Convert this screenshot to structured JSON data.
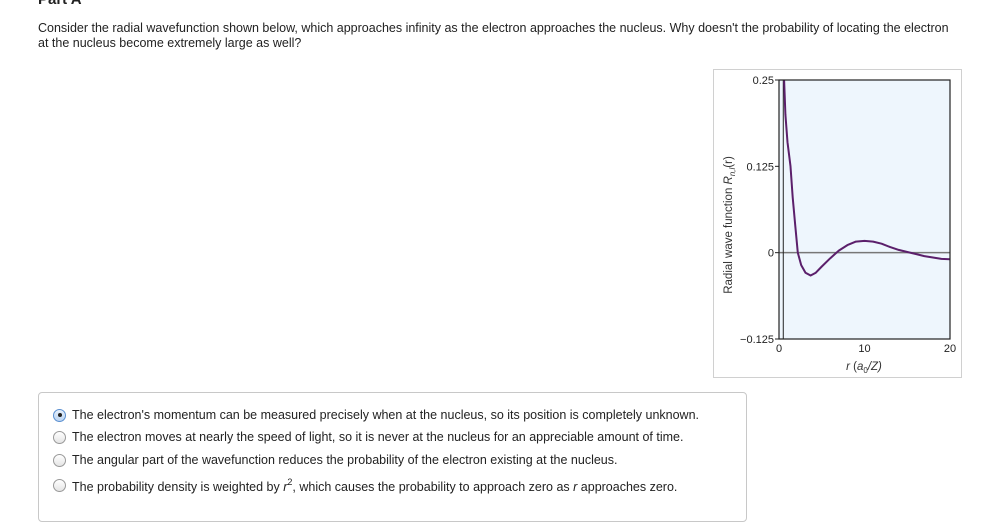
{
  "part_title": "Part A",
  "question": "Consider the radial wavefunction shown below, which approaches infinity as the electron approaches the nucleus. Why doesn't the probability of locating the electron at the nucleus become extremely large as well?",
  "chart_data": {
    "type": "line",
    "ylabel": {
      "main": "Radial wave function ",
      "symbol": "R",
      "subscript": "n,l",
      "suffix": "(r)"
    },
    "xlabel": {
      "symbol": "r",
      "open": " (",
      "a": "a",
      "sub": "0",
      "rest": "/Z)"
    },
    "xlim": [
      0,
      20
    ],
    "ylim": [
      -0.125,
      0.25
    ],
    "xticks": [
      "0",
      "10",
      "20"
    ],
    "xtick_values": [
      0,
      10,
      20
    ],
    "yticks": [
      "0.25",
      "0.125",
      "0",
      "−0.125"
    ],
    "ytick_values": [
      0.25,
      0.125,
      0,
      -0.125
    ],
    "zero_line": true,
    "vertical_line_x": 0.5,
    "background": "#eef6fd",
    "line_color": "#5b1f6b",
    "series": [
      {
        "x": [
          0.6,
          0.75,
          1.0,
          1.35,
          1.6,
          1.9,
          2.2,
          2.6,
          3.1,
          3.7,
          4.3,
          5,
          6,
          7,
          8,
          9,
          10,
          11,
          12,
          13,
          14,
          15,
          16,
          17,
          18,
          19,
          20
        ],
        "y": [
          0.25,
          0.2,
          0.16,
          0.125,
          0.08,
          0.04,
          0.0,
          -0.018,
          -0.029,
          -0.033,
          -0.029,
          -0.02,
          -0.008,
          0.003,
          0.011,
          0.016,
          0.017,
          0.016,
          0.013,
          0.008,
          0.004,
          0.001,
          -0.002,
          -0.005,
          -0.007,
          -0.009,
          -0.0095
        ]
      }
    ]
  },
  "options": [
    {
      "text": "The electron's momentum can be measured precisely when at the nucleus, so its position is completely unknown.",
      "selected": true
    },
    {
      "text": "The electron moves at nearly the speed of light, so it is never at the nucleus for an appreciable amount of time.",
      "selected": false
    },
    {
      "text": "The angular part of the wavefunction reduces the probability of the electron existing at the nucleus.",
      "selected": false
    },
    {
      "parts": {
        "a": "The probability density is weighted by ",
        "r1": "r",
        "sup": "2",
        "b": ", which causes the probability to approach zero as ",
        "r2": "r",
        "c": " approaches zero."
      },
      "selected": false
    }
  ]
}
